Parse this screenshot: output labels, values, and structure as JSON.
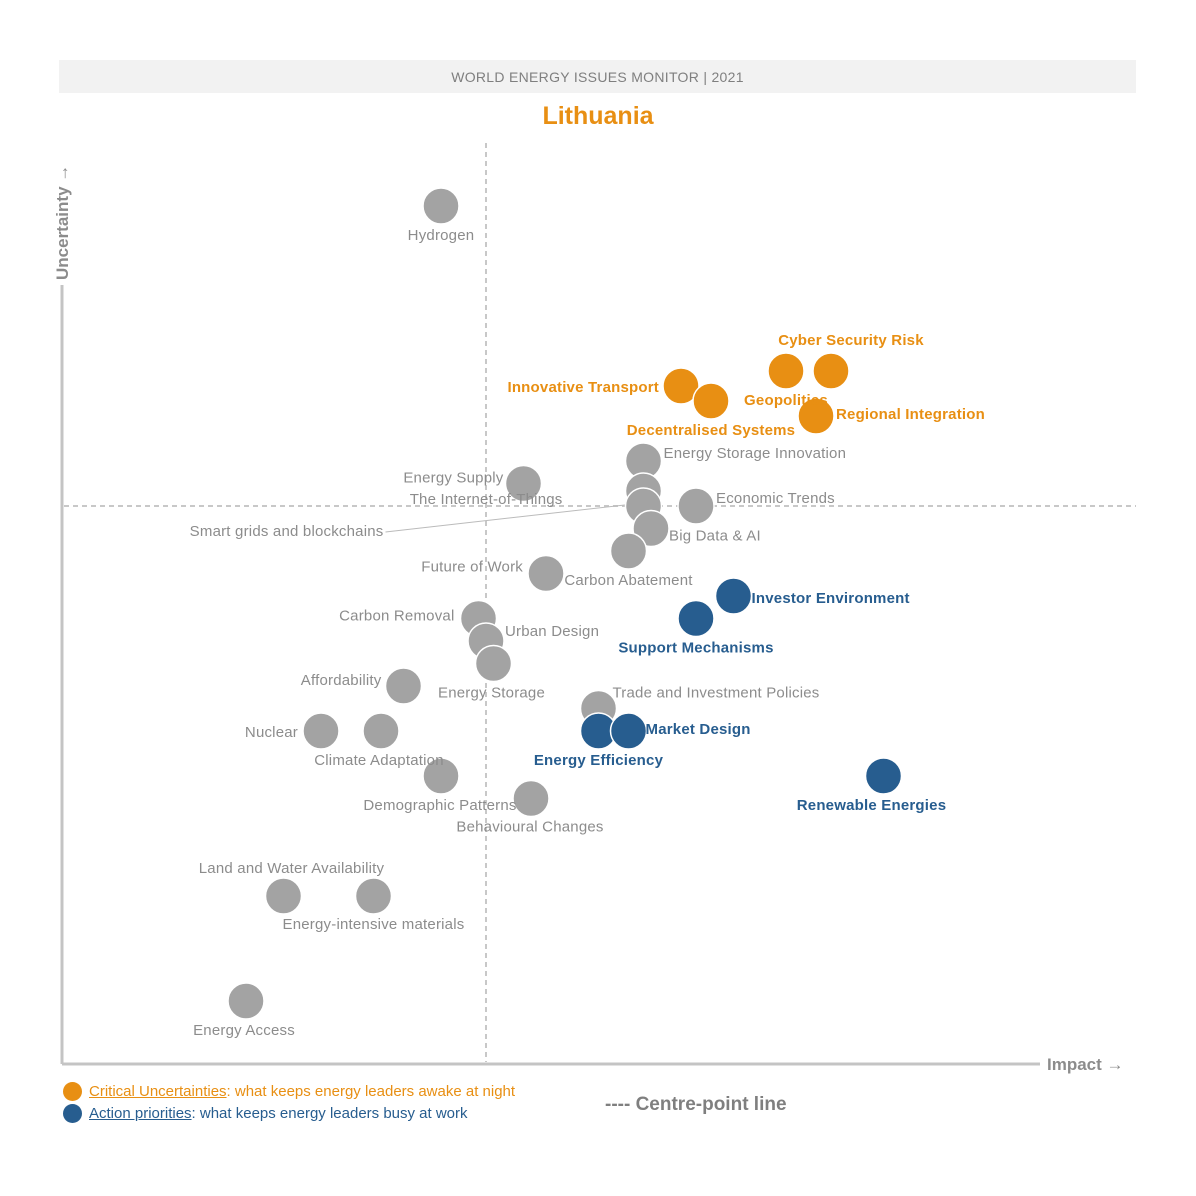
{
  "header": {
    "banner": "WORLD ENERGY ISSUES MONITOR | 2021",
    "country": "Lithuania"
  },
  "colors": {
    "critical": "#e88f13",
    "action": "#275d8f",
    "neutral": "#a3a3a3",
    "label_neutral": "#8c8c8c",
    "axis": "#c4c4c4"
  },
  "legend": {
    "critical_key": "Critical Uncertainties",
    "critical_desc": ": what keeps energy leaders awake at night",
    "action_key": "Action priorities",
    "action_desc": ": what keeps energy leaders busy at work",
    "centre_line": "---- Centre-point line"
  },
  "chart_data": {
    "type": "scatter",
    "xlabel": "Impact →",
    "ylabel": "Uncertainty →",
    "grid": false,
    "legend_position": "bottom-left",
    "centre_point": {
      "impact": 0,
      "uncertainty": 0
    },
    "points": [
      {
        "label": "Hydrogen",
        "impact": -0.3,
        "uncertainty": 2.0,
        "category": "neutral"
      },
      {
        "label": "Cyber Security Risk",
        "impact": 2.3,
        "uncertainty": 0.9,
        "category": "critical"
      },
      {
        "label": "Geopolitics",
        "impact": 2.0,
        "uncertainty": 0.9,
        "category": "critical"
      },
      {
        "label": "Innovative Transport",
        "impact": 1.3,
        "uncertainty": 0.8,
        "category": "critical"
      },
      {
        "label": "Decentralised Systems",
        "impact": 1.5,
        "uncertainty": 0.7,
        "category": "critical"
      },
      {
        "label": "Regional Integration",
        "impact": 2.2,
        "uncertainty": 0.6,
        "category": "critical"
      },
      {
        "label": "Energy Storage Innovation",
        "impact": 1.05,
        "uncertainty": 0.3,
        "category": "neutral"
      },
      {
        "label": "Energy Supply",
        "impact": 0.25,
        "uncertainty": 0.15,
        "category": "neutral"
      },
      {
        "label": "The Internet-of-Things",
        "impact": 1.05,
        "uncertainty": 0.1,
        "category": "neutral"
      },
      {
        "label": "Smart grids and blockchains",
        "impact": 1.05,
        "uncertainty": 0.0,
        "category": "neutral"
      },
      {
        "label": "Economic Trends",
        "impact": 1.4,
        "uncertainty": 0.0,
        "category": "neutral"
      },
      {
        "label": "Big Data & AI",
        "impact": 1.1,
        "uncertainty": -0.15,
        "category": "neutral"
      },
      {
        "label": "Carbon Abatement",
        "impact": 0.95,
        "uncertainty": -0.3,
        "category": "neutral"
      },
      {
        "label": "Future of Work",
        "impact": 0.4,
        "uncertainty": -0.45,
        "category": "neutral"
      },
      {
        "label": "Investor Environment",
        "impact": 1.65,
        "uncertainty": -0.6,
        "category": "action"
      },
      {
        "label": "Support Mechanisms",
        "impact": 1.4,
        "uncertainty": -0.75,
        "category": "action"
      },
      {
        "label": "Carbon Removal",
        "impact": -0.05,
        "uncertainty": -0.75,
        "category": "neutral"
      },
      {
        "label": "Urban Design",
        "impact": 0.0,
        "uncertainty": -0.9,
        "category": "neutral"
      },
      {
        "label": "Energy Storage",
        "impact": 0.05,
        "uncertainty": -1.05,
        "category": "neutral"
      },
      {
        "label": "Affordability",
        "impact": -0.55,
        "uncertainty": -1.2,
        "category": "neutral"
      },
      {
        "label": "Trade and Investment Policies",
        "impact": 0.75,
        "uncertainty": -1.35,
        "category": "neutral"
      },
      {
        "label": "Energy Efficiency",
        "impact": 0.75,
        "uncertainty": -1.5,
        "category": "action"
      },
      {
        "label": "Market Design",
        "impact": 0.95,
        "uncertainty": -1.5,
        "category": "action"
      },
      {
        "label": "Nuclear",
        "impact": -1.1,
        "uncertainty": -1.5,
        "category": "neutral"
      },
      {
        "label": "Climate Adaptation",
        "impact": -0.7,
        "uncertainty": -1.5,
        "category": "neutral"
      },
      {
        "label": "Demographic Patterns",
        "impact": -0.3,
        "uncertainty": -1.8,
        "category": "neutral"
      },
      {
        "label": "Behavioural Changes",
        "impact": 0.3,
        "uncertainty": -1.95,
        "category": "neutral"
      },
      {
        "label": "Renewable Energies",
        "impact": 2.65,
        "uncertainty": -1.8,
        "category": "action"
      },
      {
        "label": "Land and Water Availability",
        "impact": -1.35,
        "uncertainty": -2.6,
        "category": "neutral"
      },
      {
        "label": "Energy-intensive materials",
        "impact": -0.75,
        "uncertainty": -2.6,
        "category": "neutral"
      },
      {
        "label": "Energy Access",
        "impact": -1.6,
        "uncertainty": -3.3,
        "category": "neutral"
      }
    ]
  }
}
